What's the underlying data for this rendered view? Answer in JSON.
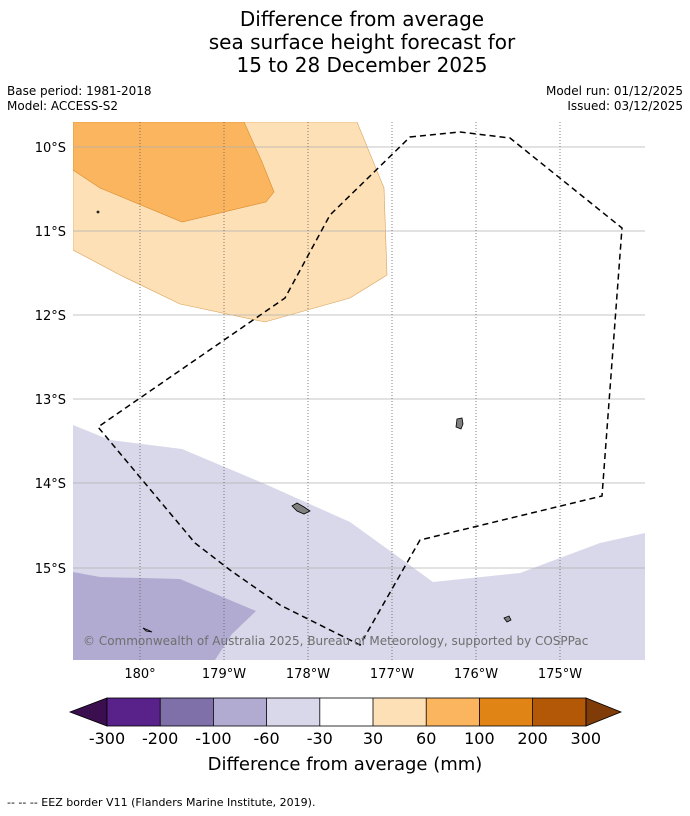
{
  "title": {
    "line1": "Difference from average",
    "line2": "sea surface height forecast for",
    "line3": "15 to 28 December 2025"
  },
  "meta": {
    "base_period": "Base period: 1981-2018",
    "model": "Model: ACCESS-S2",
    "model_run": "Model run: 01/12/2025",
    "issued": "Issued: 03/12/2025"
  },
  "map": {
    "lat_labels": [
      "10°S",
      "11°S",
      "12°S",
      "13°S",
      "14°S",
      "15°S"
    ],
    "lon_labels": [
      "180°",
      "179°W",
      "178°W",
      "177°W",
      "176°W",
      "175°W"
    ],
    "copyright": "© Commonwealth of Australia 2025, Bureau of Meteorology, supported by COSPPac"
  },
  "colorbar": {
    "labels": [
      "-300",
      "-200",
      "-100",
      "-60",
      "-30",
      "30",
      "60",
      "100",
      "200",
      "300"
    ],
    "colors": [
      "#3b0f4f",
      "#58228a",
      "#8070aa",
      "#b1abd2",
      "#d8d8ea",
      "#ffffff",
      "#fde0b6",
      "#fbb55f",
      "#e08416",
      "#b35807",
      "#7f3b08"
    ],
    "title": "Difference from average (mm)"
  },
  "legend": {
    "eez_label": "--  --  -- EEZ border V11 (Flanders Marine Institute, 2019)."
  }
}
